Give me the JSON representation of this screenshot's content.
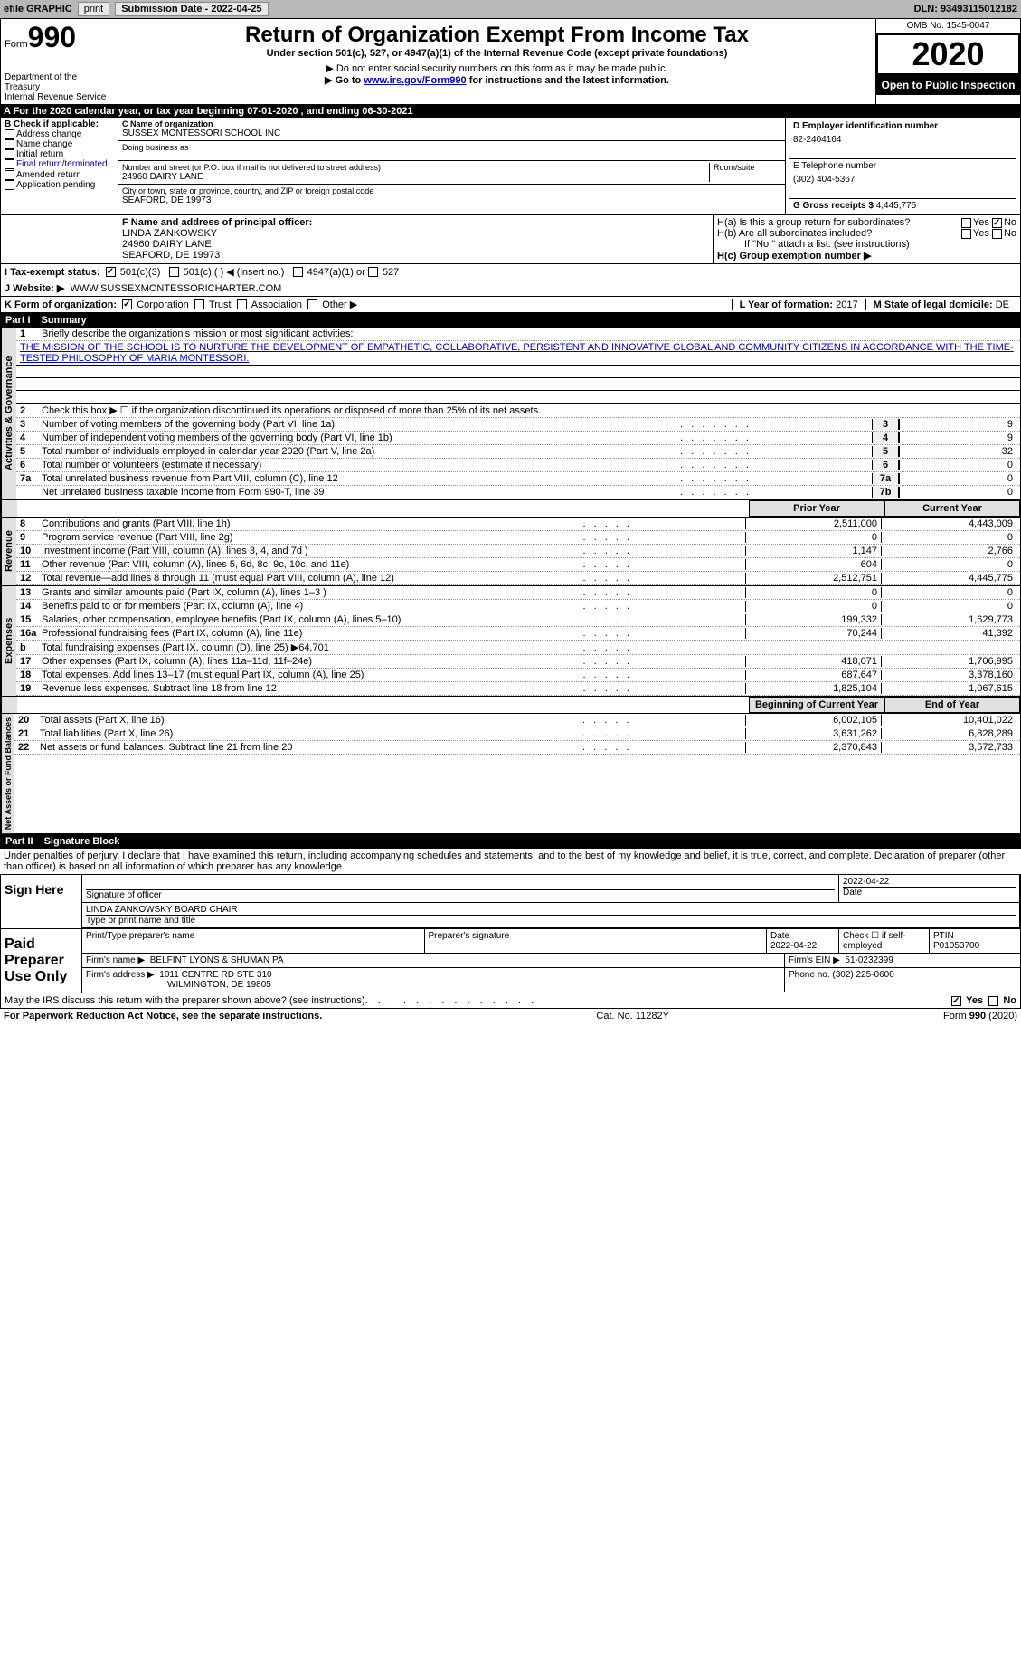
{
  "topbar": {
    "efile": "efile GRAPHIC",
    "print": "print",
    "sub_label": "Submission Date - ",
    "sub_date": "2022-04-25",
    "dln_label": "DLN: ",
    "dln": "93493115012182"
  },
  "header": {
    "form_word": "Form",
    "form_num": "990",
    "dept1": "Department of the Treasury",
    "dept2": "Internal Revenue Service",
    "title": "Return of Organization Exempt From Income Tax",
    "subtitle": "Under section 501(c), 527, or 4947(a)(1) of the Internal Revenue Code (except private foundations)",
    "note1": "▶ Do not enter social security numbers on this form as it may be made public.",
    "note2_pre": "▶ Go to ",
    "note2_link": "www.irs.gov/Form990",
    "note2_post": " for instructions and the latest information.",
    "omb": "OMB No. 1545-0047",
    "year": "2020",
    "open": "Open to Public Inspection"
  },
  "period": "A For the 2020 calendar year, or tax year beginning 07-01-2020   , and ending 06-30-2021",
  "b": {
    "label": "B Check if applicable:",
    "addr": "Address change",
    "name": "Name change",
    "init": "Initial return",
    "final": "Final return/terminated",
    "amend": "Amended return",
    "app": "Application pending"
  },
  "c": {
    "name_label": "C Name of organization",
    "name": "SUSSEX MONTESSORI SCHOOL INC",
    "dba_label": "Doing business as",
    "addr_label": "Number and street (or P.O. box if mail is not delivered to street address)",
    "room_label": "Room/suite",
    "addr": "24960 DAIRY LANE",
    "city_label": "City or town, state or province, country, and ZIP or foreign postal code",
    "city": "SEAFORD, DE  19973"
  },
  "d": {
    "label": "D Employer identification number",
    "val": "82-2404164"
  },
  "e": {
    "label": "E Telephone number",
    "val": "(302) 404-5367"
  },
  "g": {
    "label": "G Gross receipts $ ",
    "val": "4,445,775"
  },
  "f": {
    "label": "F Name and address of principal officer:",
    "name": "LINDA ZANKOWSKY",
    "addr": "24960 DAIRY LANE",
    "city": "SEAFORD, DE  19973"
  },
  "h": {
    "a": "H(a)  Is this a group return for subordinates?",
    "b": "H(b)  Are all subordinates included?",
    "b_note": "If \"No,\" attach a list. (see instructions)",
    "c": "H(c)  Group exemption number ▶",
    "yes": "Yes",
    "no": "No"
  },
  "i": {
    "label": "I   Tax-exempt status:",
    "o1": "501(c)(3)",
    "o2": "501(c) (  ) ◀ (insert no.)",
    "o3": "4947(a)(1) or",
    "o4": "527"
  },
  "j": {
    "label": "J   Website: ▶",
    "val": "WWW.SUSSEXMONTESSORICHARTER.COM"
  },
  "k": {
    "label": "K Form of organization:",
    "corp": "Corporation",
    "trust": "Trust",
    "assoc": "Association",
    "other": "Other ▶"
  },
  "l": {
    "label": "L Year of formation: ",
    "val": "2017"
  },
  "m": {
    "label": "M State of legal domicile: ",
    "val": "DE"
  },
  "part1": {
    "label": "Part I",
    "title": "Summary"
  },
  "summary": {
    "q1": "Briefly describe the organization's mission or most significant activities:",
    "mission": "THE MISSION OF THE SCHOOL IS TO NURTURE THE DEVELOPMENT OF EMPATHETIC, COLLABORATIVE, PERSISTENT AND INNOVATIVE GLOBAL AND COMMUNITY CITIZENS IN ACCORDANCE WITH THE TIME-TESTED PHILOSOPHY OF MARIA MONTESSORI.",
    "q2": "Check this box ▶ ☐  if the organization discontinued its operations or disposed of more than 25% of its net assets.",
    "lines_gov": [
      {
        "n": "3",
        "d": "Number of voting members of the governing body (Part VI, line 1a)",
        "box": "3",
        "v": "9"
      },
      {
        "n": "4",
        "d": "Number of independent voting members of the governing body (Part VI, line 1b)",
        "box": "4",
        "v": "9"
      },
      {
        "n": "5",
        "d": "Total number of individuals employed in calendar year 2020 (Part V, line 2a)",
        "box": "5",
        "v": "32"
      },
      {
        "n": "6",
        "d": "Total number of volunteers (estimate if necessary)",
        "box": "6",
        "v": "0"
      },
      {
        "n": "7a",
        "d": "Total unrelated business revenue from Part VIII, column (C), line 12",
        "box": "7a",
        "v": "0"
      },
      {
        "n": "  ",
        "d": "Net unrelated business taxable income from Form 990-T, line 39",
        "box": "7b",
        "v": "0"
      }
    ],
    "col_prior": "Prior Year",
    "col_current": "Current Year",
    "rev": [
      {
        "n": "8",
        "d": "Contributions and grants (Part VIII, line 1h)",
        "p": "2,511,000",
        "c": "4,443,009"
      },
      {
        "n": "9",
        "d": "Program service revenue (Part VIII, line 2g)",
        "p": "0",
        "c": "0"
      },
      {
        "n": "10",
        "d": "Investment income (Part VIII, column (A), lines 3, 4, and 7d )",
        "p": "1,147",
        "c": "2,766"
      },
      {
        "n": "11",
        "d": "Other revenue (Part VIII, column (A), lines 5, 6d, 8c, 9c, 10c, and 11e)",
        "p": "604",
        "c": "0"
      },
      {
        "n": "12",
        "d": "Total revenue—add lines 8 through 11 (must equal Part VIII, column (A), line 12)",
        "p": "2,512,751",
        "c": "4,445,775"
      }
    ],
    "exp": [
      {
        "n": "13",
        "d": "Grants and similar amounts paid (Part IX, column (A), lines 1–3 )",
        "p": "0",
        "c": "0"
      },
      {
        "n": "14",
        "d": "Benefits paid to or for members (Part IX, column (A), line 4)",
        "p": "0",
        "c": "0"
      },
      {
        "n": "15",
        "d": "Salaries, other compensation, employee benefits (Part IX, column (A), lines 5–10)",
        "p": "199,332",
        "c": "1,629,773"
      },
      {
        "n": "16a",
        "d": "Professional fundraising fees (Part IX, column (A), line 11e)",
        "p": "70,244",
        "c": "41,392"
      },
      {
        "n": "b",
        "d": "Total fundraising expenses (Part IX, column (D), line 25) ▶64,701",
        "p": "",
        "c": "",
        "shaded": true
      },
      {
        "n": "17",
        "d": "Other expenses (Part IX, column (A), lines 11a–11d, 11f–24e)",
        "p": "418,071",
        "c": "1,706,995"
      },
      {
        "n": "18",
        "d": "Total expenses. Add lines 13–17 (must equal Part IX, column (A), line 25)",
        "p": "687,647",
        "c": "3,378,160"
      },
      {
        "n": "19",
        "d": "Revenue less expenses. Subtract line 18 from line 12",
        "p": "1,825,104",
        "c": "1,067,615"
      }
    ],
    "col_begin": "Beginning of Current Year",
    "col_end": "End of Year",
    "net": [
      {
        "n": "20",
        "d": "Total assets (Part X, line 16)",
        "p": "6,002,105",
        "c": "10,401,022"
      },
      {
        "n": "21",
        "d": "Total liabilities (Part X, line 26)",
        "p": "3,631,262",
        "c": "6,828,289"
      },
      {
        "n": "22",
        "d": "Net assets or fund balances. Subtract line 21 from line 20",
        "p": "2,370,843",
        "c": "3,572,733"
      }
    ]
  },
  "vert": {
    "gov": "Activities & Governance",
    "rev": "Revenue",
    "exp": "Expenses",
    "net": "Net Assets or Fund Balances"
  },
  "part2": {
    "label": "Part II",
    "title": "Signature Block"
  },
  "penalty": "Under penalties of perjury, I declare that I have examined this return, including accompanying schedules and statements, and to the best of my knowledge and belief, it is true, correct, and complete. Declaration of preparer (other than officer) is based on all information of which preparer has any knowledge.",
  "sign": {
    "here": "Sign Here",
    "sig_officer": "Signature of officer",
    "date": "Date",
    "date_val": "2022-04-22",
    "name": "LINDA ZANKOWSKY  BOARD CHAIR",
    "name_label": "Type or print name and title"
  },
  "prep": {
    "title": "Paid Preparer Use Only",
    "pname": "Print/Type preparer's name",
    "psig": "Preparer's signature",
    "pdate": "Date",
    "pdate_val": "2022-04-22",
    "self": "Check ☐ if self-employed",
    "ptin_label": "PTIN",
    "ptin": "P01053700",
    "firm_label": "Firm's name    ▶",
    "firm": "BELFINT LYONS & SHUMAN PA",
    "ein_label": "Firm's EIN ▶",
    "ein": "51-0232399",
    "addr_label": "Firm's address ▶",
    "addr1": "1011 CENTRE RD STE 310",
    "addr2": "WILMINGTON, DE  19805",
    "phone_label": "Phone no. ",
    "phone": "(302) 225-0600"
  },
  "discuss": {
    "q": "May the IRS discuss this return with the preparer shown above? (see instructions)",
    "yes": "Yes",
    "no": "No"
  },
  "footer": {
    "left": "For Paperwork Reduction Act Notice, see the separate instructions.",
    "mid": "Cat. No. 11282Y",
    "right": "Form 990 (2020)"
  }
}
